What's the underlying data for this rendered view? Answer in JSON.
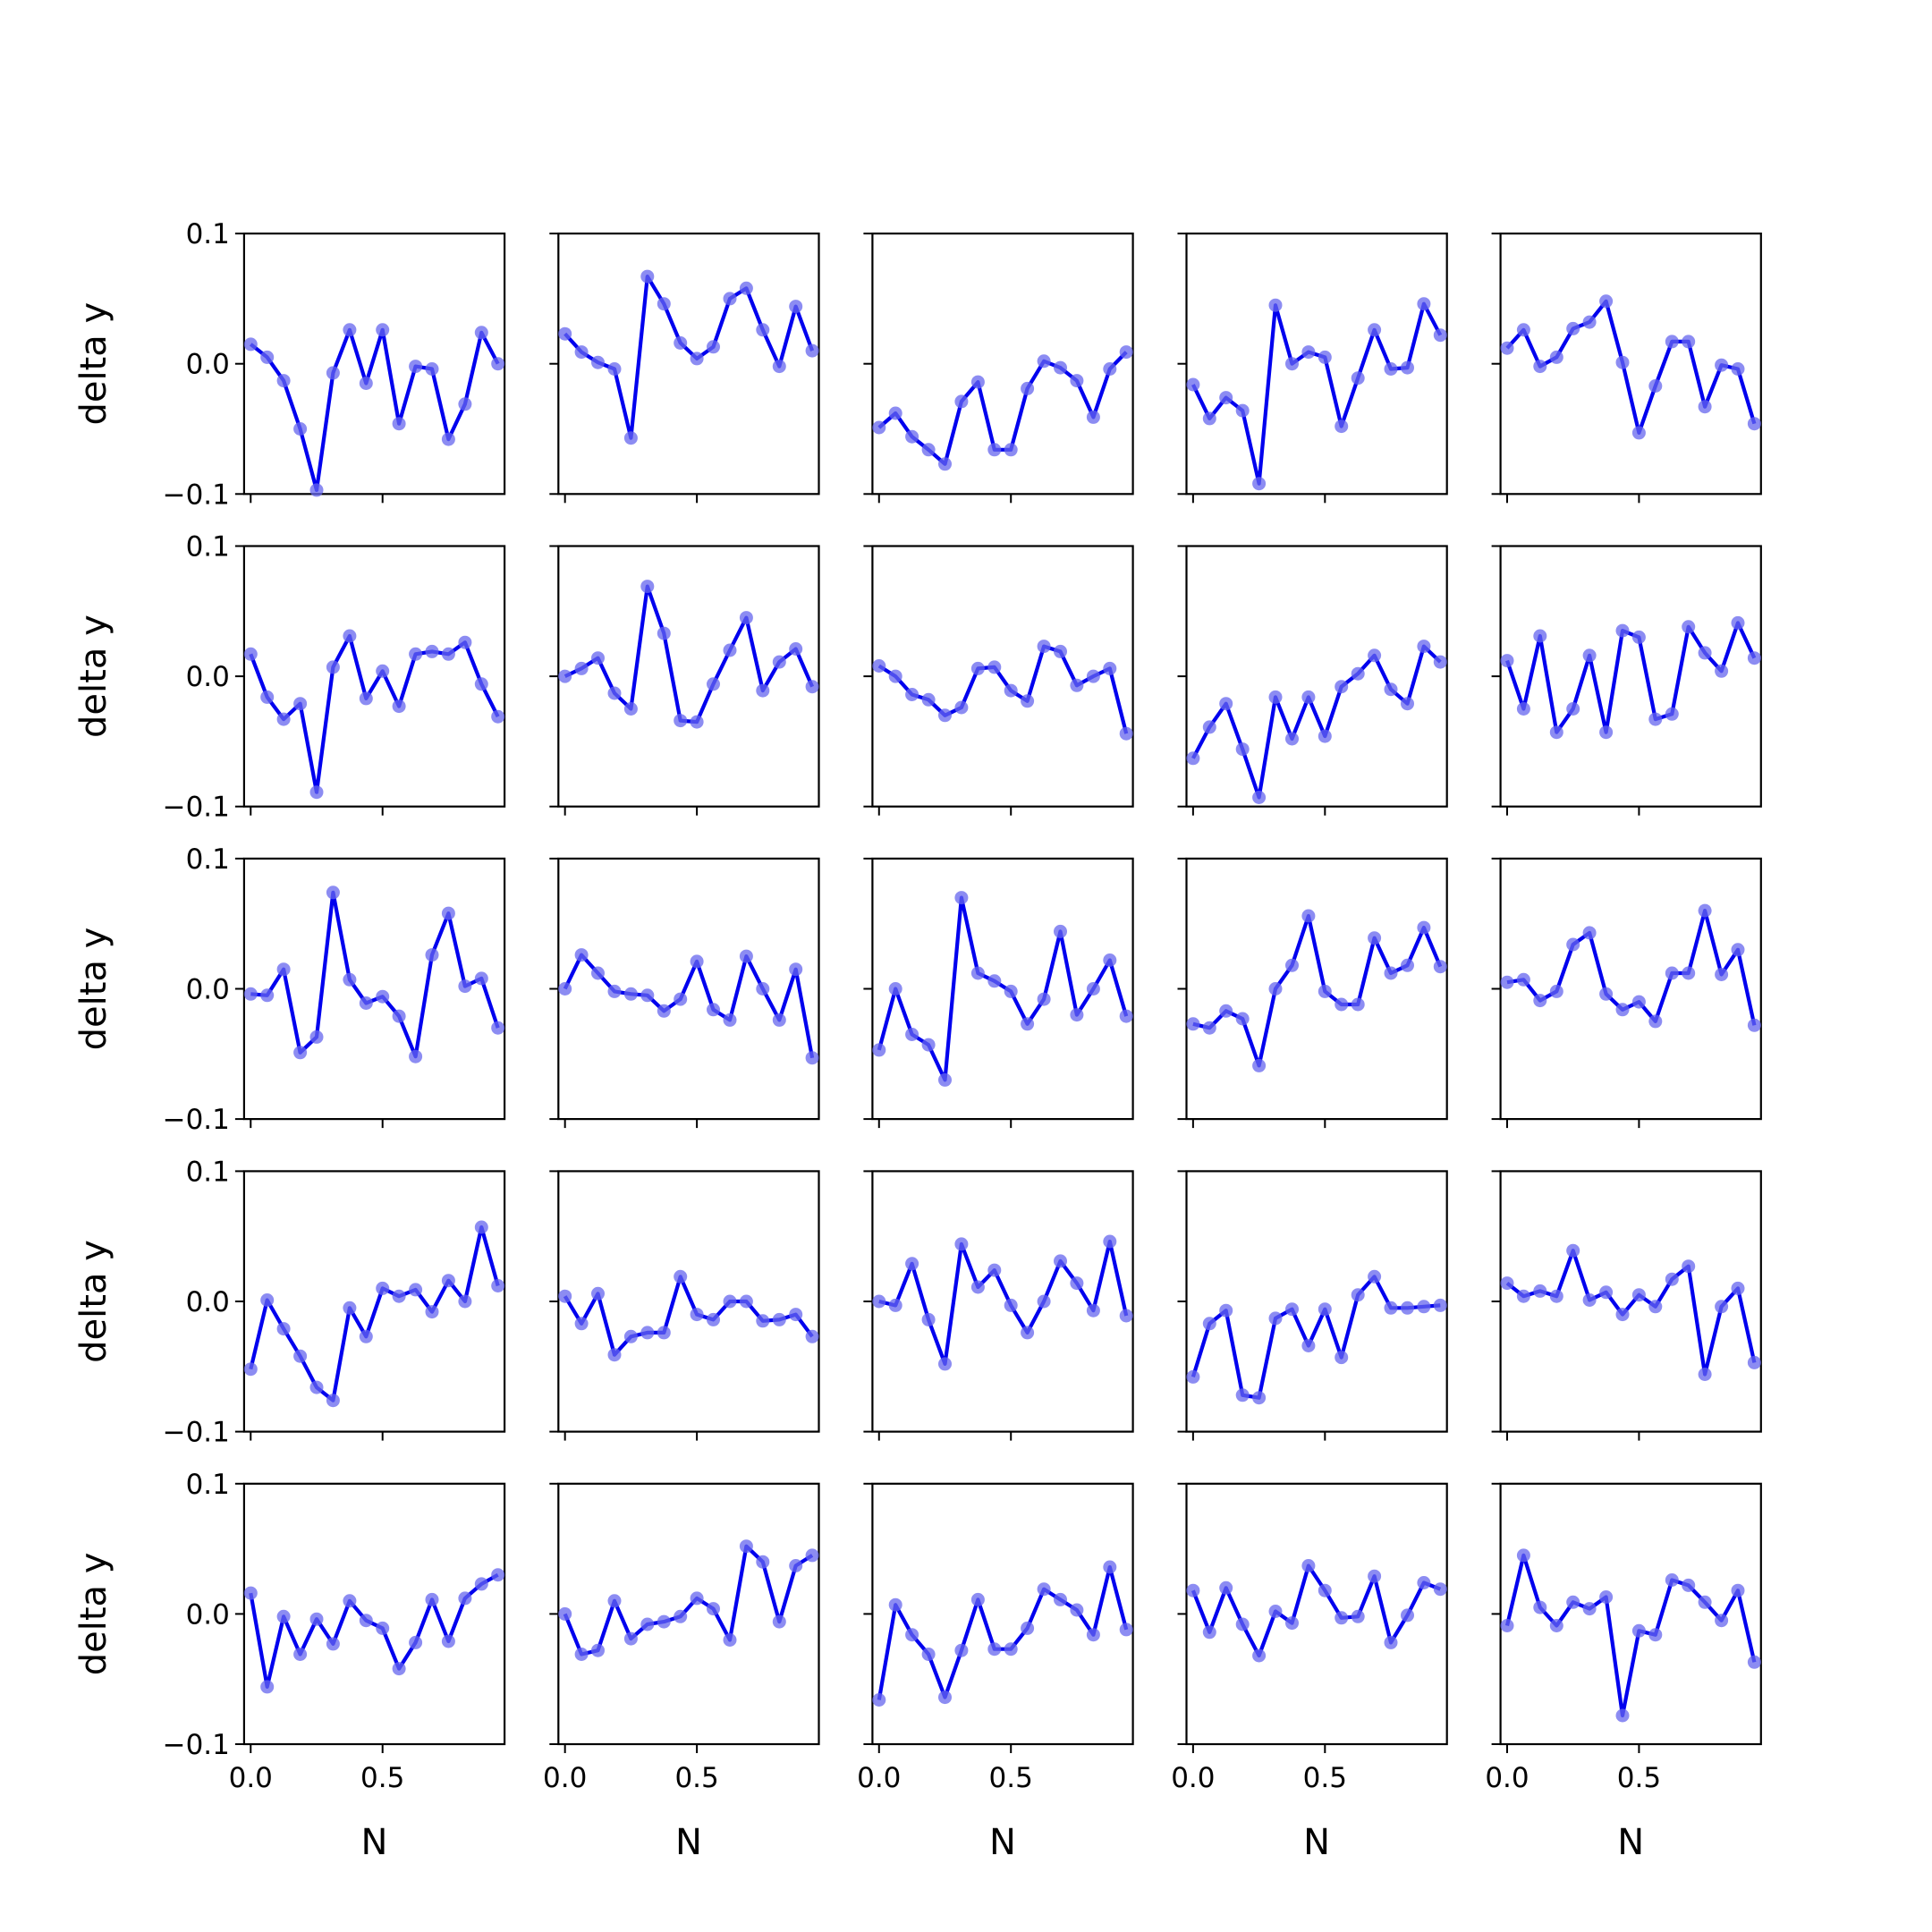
{
  "figure": {
    "background": "#ffffff"
  },
  "style": {
    "line_color": "#0000ee",
    "marker_color": "#6666ee",
    "axis_color": "#000000"
  },
  "chart_data": {
    "type": "line",
    "layout": {
      "rows": 5,
      "cols": 5
    },
    "xlabel": "N",
    "ylabel": "delta y",
    "ylim": [
      -0.1,
      0.1
    ],
    "yticks": [
      -0.1,
      0.0,
      0.1
    ],
    "ytick_labels": [
      "−0.1",
      "0.0",
      "0.1"
    ],
    "xlim": [
      -0.025,
      0.9625
    ],
    "xticks": [
      0.0,
      0.5
    ],
    "xtick_labels": [
      "0.0",
      "0.5"
    ],
    "x": [
      0.0,
      0.0625,
      0.125,
      0.1875,
      0.25,
      0.3125,
      0.375,
      0.4375,
      0.5,
      0.5625,
      0.625,
      0.6875,
      0.75,
      0.8125,
      0.875,
      0.9375
    ],
    "panels": [
      {
        "values": [
          0.015,
          0.005,
          -0.013,
          -0.05,
          -0.097,
          -0.007,
          0.026,
          -0.015,
          0.026,
          -0.046,
          -0.002,
          -0.004,
          -0.058,
          -0.031,
          0.024,
          0.0
        ]
      },
      {
        "values": [
          0.023,
          0.009,
          0.001,
          -0.004,
          -0.057,
          0.067,
          0.046,
          0.016,
          0.004,
          0.013,
          0.05,
          0.058,
          0.026,
          -0.002,
          0.044,
          0.01
        ]
      },
      {
        "values": [
          -0.049,
          -0.038,
          -0.056,
          -0.066,
          -0.077,
          -0.029,
          -0.014,
          -0.066,
          -0.066,
          -0.019,
          0.002,
          -0.003,
          -0.013,
          -0.041,
          -0.004,
          0.009
        ]
      },
      {
        "values": [
          -0.016,
          -0.042,
          -0.026,
          -0.036,
          -0.092,
          0.045,
          0.0,
          0.009,
          0.005,
          -0.048,
          -0.011,
          0.026,
          -0.004,
          -0.003,
          0.046,
          0.022
        ]
      },
      {
        "values": [
          0.012,
          0.026,
          -0.002,
          0.005,
          0.027,
          0.032,
          0.048,
          0.001,
          -0.053,
          -0.017,
          0.017,
          0.017,
          -0.033,
          -0.001,
          -0.004,
          -0.046
        ]
      },
      {
        "values": [
          0.017,
          -0.016,
          -0.033,
          -0.021,
          -0.089,
          0.007,
          0.031,
          -0.017,
          0.004,
          -0.023,
          0.017,
          0.019,
          0.017,
          0.026,
          -0.006,
          -0.031
        ]
      },
      {
        "values": [
          0.0,
          0.006,
          0.014,
          -0.013,
          -0.025,
          0.069,
          0.033,
          -0.034,
          -0.035,
          -0.006,
          0.02,
          0.045,
          -0.011,
          0.011,
          0.021,
          -0.008
        ]
      },
      {
        "values": [
          0.008,
          0.0,
          -0.014,
          -0.018,
          -0.03,
          -0.024,
          0.006,
          0.007,
          -0.011,
          -0.019,
          0.023,
          0.019,
          -0.007,
          0.0,
          0.006,
          -0.044
        ]
      },
      {
        "values": [
          -0.063,
          -0.039,
          -0.021,
          -0.056,
          -0.093,
          -0.016,
          -0.048,
          -0.016,
          -0.046,
          -0.008,
          0.002,
          0.016,
          -0.01,
          -0.021,
          0.023,
          0.011
        ]
      },
      {
        "values": [
          0.012,
          -0.025,
          0.031,
          -0.043,
          -0.025,
          0.016,
          -0.043,
          0.035,
          0.03,
          -0.033,
          -0.029,
          0.038,
          0.018,
          0.004,
          0.041,
          0.014
        ]
      },
      {
        "values": [
          -0.004,
          -0.005,
          0.015,
          -0.049,
          -0.037,
          0.074,
          0.007,
          -0.011,
          -0.006,
          -0.021,
          -0.052,
          0.026,
          0.058,
          0.002,
          0.008,
          -0.03
        ]
      },
      {
        "values": [
          0.0,
          0.026,
          0.012,
          -0.002,
          -0.004,
          -0.005,
          -0.017,
          -0.008,
          0.021,
          -0.016,
          -0.024,
          0.025,
          0.0,
          -0.024,
          0.015,
          -0.053
        ]
      },
      {
        "values": [
          -0.047,
          0.0,
          -0.035,
          -0.043,
          -0.07,
          0.07,
          0.012,
          0.006,
          -0.002,
          -0.027,
          -0.008,
          0.044,
          -0.02,
          0.0,
          0.022,
          -0.021
        ]
      },
      {
        "values": [
          -0.027,
          -0.03,
          -0.017,
          -0.023,
          -0.059,
          0.0,
          0.018,
          0.056,
          -0.002,
          -0.012,
          -0.012,
          0.039,
          0.012,
          0.018,
          0.047,
          0.017
        ]
      },
      {
        "values": [
          0.005,
          0.007,
          -0.009,
          -0.002,
          0.034,
          0.043,
          -0.004,
          -0.016,
          -0.01,
          -0.025,
          0.012,
          0.012,
          0.06,
          0.011,
          0.03,
          -0.028
        ]
      },
      {
        "values": [
          -0.052,
          0.001,
          -0.021,
          -0.042,
          -0.066,
          -0.076,
          -0.005,
          -0.027,
          0.01,
          0.004,
          0.009,
          -0.008,
          0.016,
          0.0,
          0.057,
          0.012
        ]
      },
      {
        "values": [
          0.004,
          -0.017,
          0.006,
          -0.041,
          -0.027,
          -0.024,
          -0.024,
          0.019,
          -0.01,
          -0.014,
          0.0,
          0.0,
          -0.015,
          -0.014,
          -0.01,
          -0.027
        ]
      },
      {
        "values": [
          0.0,
          -0.003,
          0.029,
          -0.014,
          -0.048,
          0.044,
          0.011,
          0.024,
          -0.003,
          -0.024,
          0.0,
          0.031,
          0.014,
          -0.007,
          0.046,
          -0.011
        ]
      },
      {
        "values": [
          -0.058,
          -0.017,
          -0.007,
          -0.072,
          -0.074,
          -0.013,
          -0.006,
          -0.034,
          -0.006,
          -0.043,
          0.005,
          0.019,
          -0.005,
          -0.005,
          -0.004,
          -0.003
        ]
      },
      {
        "values": [
          0.014,
          0.004,
          0.008,
          0.004,
          0.039,
          0.001,
          0.007,
          -0.01,
          0.005,
          -0.004,
          0.017,
          0.027,
          -0.056,
          -0.004,
          0.01,
          -0.047
        ]
      },
      {
        "values": [
          0.016,
          -0.056,
          -0.002,
          -0.031,
          -0.004,
          -0.023,
          0.01,
          -0.005,
          -0.011,
          -0.042,
          -0.022,
          0.011,
          -0.021,
          0.012,
          0.023,
          0.03
        ]
      },
      {
        "values": [
          0.0,
          -0.031,
          -0.028,
          0.01,
          -0.019,
          -0.008,
          -0.006,
          -0.002,
          0.012,
          0.004,
          -0.02,
          0.052,
          0.04,
          -0.006,
          0.037,
          0.045
        ]
      },
      {
        "values": [
          -0.066,
          0.007,
          -0.016,
          -0.031,
          -0.064,
          -0.028,
          0.011,
          -0.027,
          -0.027,
          -0.011,
          0.019,
          0.011,
          0.003,
          -0.016,
          0.036,
          -0.012
        ]
      },
      {
        "values": [
          0.018,
          -0.014,
          0.02,
          -0.008,
          -0.032,
          0.002,
          -0.007,
          0.037,
          0.018,
          -0.003,
          -0.002,
          0.029,
          -0.022,
          -0.001,
          0.024,
          0.019
        ]
      },
      {
        "values": [
          -0.009,
          0.045,
          0.005,
          -0.009,
          0.009,
          0.004,
          0.013,
          -0.078,
          -0.013,
          -0.016,
          0.026,
          0.022,
          0.009,
          -0.005,
          0.018,
          -0.037
        ]
      }
    ]
  }
}
